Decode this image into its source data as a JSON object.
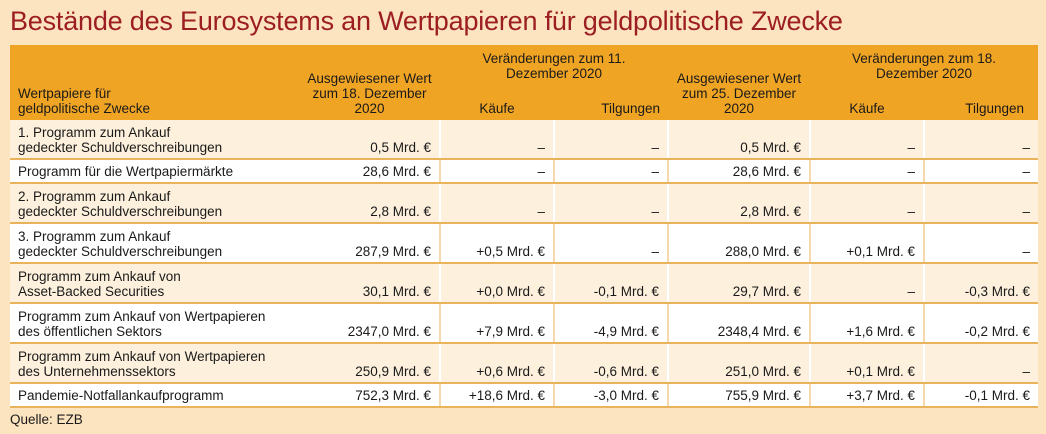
{
  "title": "Bestände des Eurosystems an Wertpapieren für geldpolitische Zwecke",
  "header": {
    "col0": "Wertpapiere für geldpolitische Zwecke",
    "col1": "Ausgewiesener Wert zum 18. Dezember 2020",
    "group1": "Veränderungen zum 11. Dezember 2020",
    "col2": "Käufe",
    "col3": "Tilgungen",
    "col4": "Ausgewiesener Wert zum 25. Dezember 2020",
    "group2": "Veränderungen zum 18. Dezember 2020",
    "col5": "Käufe",
    "col6": "Tilgungen"
  },
  "rows": [
    [
      "1. Programm zum Ankauf gedeckter Schuldverschreibungen",
      "0,5 Mrd. €",
      "–",
      "–",
      "0,5 Mrd. €",
      "–",
      "–"
    ],
    [
      "Programm für die Wertpapiermärkte",
      "28,6 Mrd. €",
      "–",
      "–",
      "28,6 Mrd. €",
      "–",
      "–"
    ],
    [
      "2. Programm zum Ankauf gedeckter Schuldverschreibungen",
      "2,8 Mrd. €",
      "–",
      "–",
      "2,8 Mrd. €",
      "–",
      "–"
    ],
    [
      "3. Programm zum Ankauf gedeckter Schuldverschreibungen",
      "287,9 Mrd. €",
      "+0,5 Mrd. €",
      "–",
      "288,0 Mrd. €",
      "+0,1 Mrd. €",
      "–"
    ],
    [
      "Programm zum Ankauf von Asset-Backed Securities",
      "30,1 Mrd. €",
      "+0,0 Mrd. €",
      "-0,1 Mrd. €",
      "29,7 Mrd. €",
      "–",
      "-0,3 Mrd. €"
    ],
    [
      "Programm zum Ankauf von Wertpapieren des öffentlichen Sektors",
      "2347,0 Mrd. €",
      "+7,9 Mrd. €",
      "-4,9 Mrd. €",
      "2348,4 Mrd. €",
      "+1,6 Mrd. €",
      "-0,2 Mrd. €"
    ],
    [
      "Programm zum Ankauf von Wertpapieren des Unternehmenssektors",
      "250,9 Mrd. €",
      "+0,6 Mrd. €",
      "-0,6 Mrd. €",
      "251,0 Mrd. €",
      "+0,1 Mrd. €",
      "–"
    ],
    [
      "Pandemie-Notfallankaufprogramm",
      "752,3 Mrd. €",
      "+18,6 Mrd. €",
      "-3,0 Mrd. €",
      "755,9 Mrd. €",
      "+3,7 Mrd. €",
      "-0,1 Mrd. €"
    ]
  ],
  "source": "Quelle: EZB"
}
